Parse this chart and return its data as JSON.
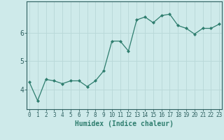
{
  "x": [
    0,
    1,
    2,
    3,
    4,
    5,
    6,
    7,
    8,
    9,
    10,
    11,
    12,
    13,
    14,
    15,
    16,
    17,
    18,
    19,
    20,
    21,
    22,
    23
  ],
  "y": [
    4.25,
    3.6,
    4.35,
    4.3,
    4.2,
    4.3,
    4.3,
    4.1,
    4.3,
    4.65,
    5.7,
    5.7,
    5.35,
    6.45,
    6.55,
    6.35,
    6.6,
    6.65,
    6.25,
    6.15,
    5.95,
    6.15,
    6.15,
    6.3
  ],
  "xlabel": "Humidex (Indice chaleur)",
  "line_color": "#2e7d6e",
  "bg_color": "#ceeaea",
  "grid_color": "#b8d8d8",
  "axis_color": "#2e6060",
  "yticks": [
    4,
    5,
    6
  ],
  "xticks": [
    0,
    1,
    2,
    3,
    4,
    5,
    6,
    7,
    8,
    9,
    10,
    11,
    12,
    13,
    14,
    15,
    16,
    17,
    18,
    19,
    20,
    21,
    22,
    23
  ],
  "xlim": [
    -0.3,
    23.3
  ],
  "ylim": [
    3.3,
    7.1
  ],
  "xlabel_fontsize": 7,
  "tick_fontsize": 5.5,
  "ytick_fontsize": 7
}
